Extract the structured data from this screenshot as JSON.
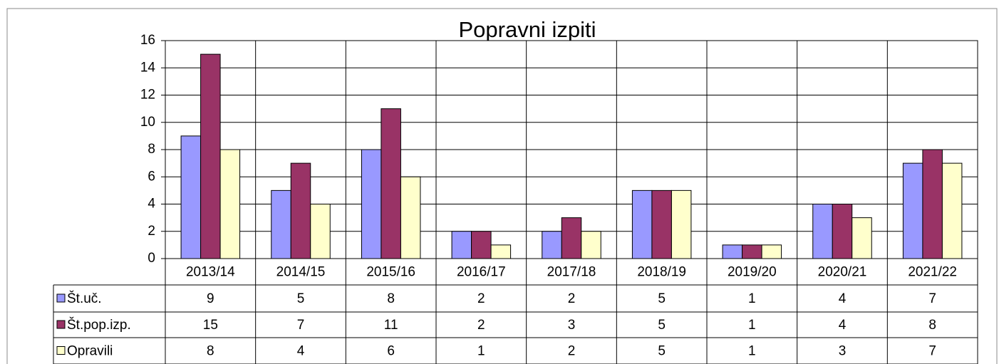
{
  "chart_data": {
    "type": "bar",
    "title": "Popravni izpiti",
    "categories": [
      "2013/14",
      "2014/15",
      "2015/16",
      "2016/17",
      "2017/18",
      "2018/19",
      "2019/20",
      "2020/21",
      "2021/22"
    ],
    "series": [
      {
        "name": "Št.uč.",
        "color": "#9999ff",
        "values": [
          9,
          5,
          8,
          2,
          2,
          5,
          1,
          4,
          7
        ]
      },
      {
        "name": "Št.pop.izp.",
        "color": "#993366",
        "values": [
          15,
          7,
          11,
          2,
          3,
          5,
          1,
          4,
          8
        ]
      },
      {
        "name": "Opravili",
        "color": "#ffffcc",
        "values": [
          8,
          4,
          6,
          1,
          2,
          5,
          1,
          3,
          7
        ]
      }
    ],
    "ylim": [
      0,
      16
    ],
    "yticks": [
      0,
      2,
      4,
      6,
      8,
      10,
      12,
      14,
      16
    ],
    "grid": true,
    "data_table": true
  }
}
